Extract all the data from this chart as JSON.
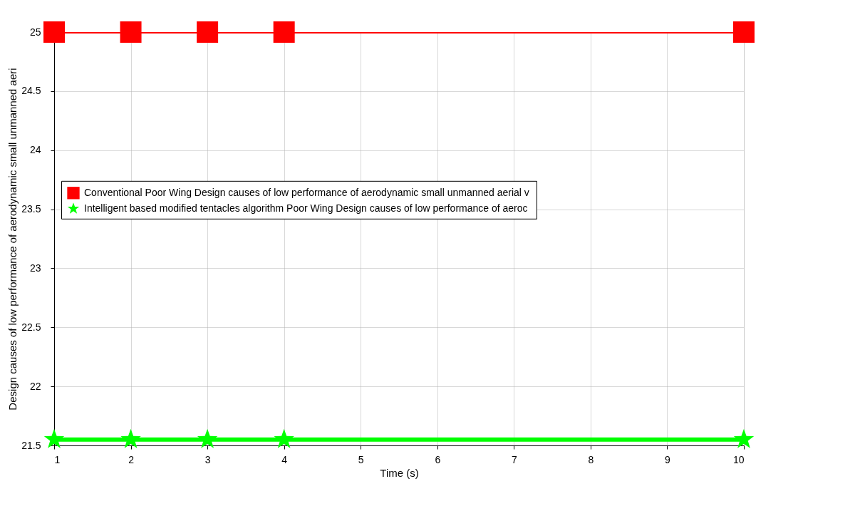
{
  "chart_data": {
    "type": "line",
    "xlabel": "Time (s)",
    "ylabel": "Design  causes of low performance of aerodynamic small unmanned aeri",
    "xlim": [
      1,
      10
    ],
    "xticks": [
      1,
      2,
      3,
      4,
      5,
      6,
      7,
      8,
      9,
      10
    ],
    "ylim": [
      21.5,
      25
    ],
    "yticks": [
      21.5,
      22,
      22.5,
      23,
      23.5,
      24,
      24.5,
      25
    ],
    "grid": true,
    "legend": "left",
    "series": [
      {
        "name": "Conventional Poor Wing Design  causes of low performance of aerodynamic small unmanned aerial v",
        "color": "#ff0000",
        "marker": "square",
        "x": [
          1,
          2,
          3,
          4,
          10
        ],
        "values": [
          25,
          25,
          25,
          25,
          25
        ]
      },
      {
        "name": "Intelligent based modified tentacles algorithm Poor Wing Design  causes of low performance of aeroc",
        "color": "#00ff00",
        "marker": "star",
        "x": [
          1,
          2,
          3,
          4,
          10
        ],
        "values": [
          21.55,
          21.55,
          21.55,
          21.55,
          21.55
        ]
      }
    ]
  }
}
